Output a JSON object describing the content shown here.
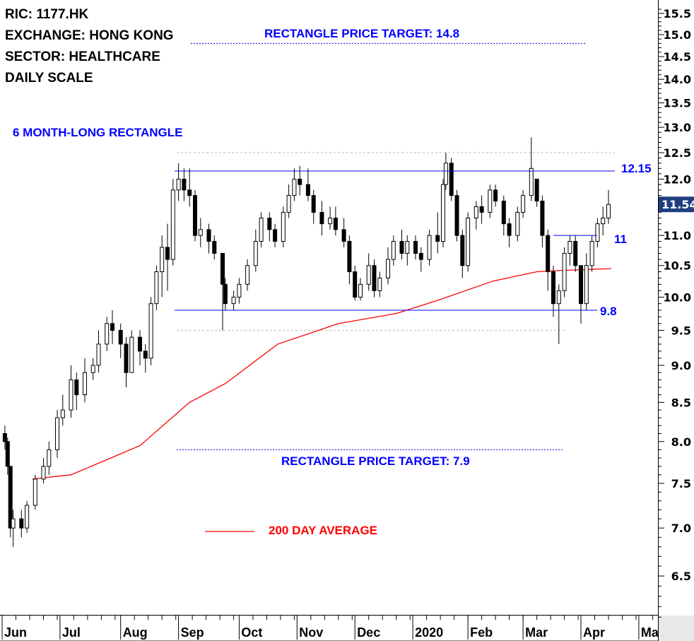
{
  "chart_data": {
    "type": "candlestick",
    "title": "",
    "info": [
      "RIC: 1177.HK",
      "EXCHANGE: HONG KONG",
      "SECTOR: HEALTHCARE",
      "DAILY SCALE"
    ],
    "y_scale": "log",
    "ylim": [
      6.0,
      15.7
    ],
    "y_ticks": [
      "15.5",
      "15.0",
      "14.5",
      "14.0",
      "13.5",
      "13.0",
      "12.5",
      "12.0",
      "11.0",
      "10.5",
      "10.0",
      "9.5",
      "9.0",
      "8.5",
      "8.0",
      "7.5",
      "7.0",
      "6.5"
    ],
    "x_ticks": [
      {
        "label": "Jun",
        "day": 0
      },
      {
        "label": "Jul",
        "day": 21
      },
      {
        "label": "Aug",
        "day": 43
      },
      {
        "label": "Sep",
        "day": 64
      },
      {
        "label": "Oct",
        "day": 86
      },
      {
        "label": "Nov",
        "day": 107
      },
      {
        "label": "Dec",
        "day": 128
      },
      {
        "label": "2020",
        "day": 149
      },
      {
        "label": "Feb",
        "day": 169
      },
      {
        "label": "Mar",
        "day": 189
      },
      {
        "label": "Apr",
        "day": 210
      },
      {
        "label": "Ma",
        "day": 231
      }
    ],
    "last_price": "11.54",
    "candle_fields": [
      "day",
      "open",
      "high",
      "low",
      "close"
    ],
    "candles": [
      [
        1,
        8.1,
        8.2,
        7.9,
        8.0
      ],
      [
        2,
        8.0,
        8.05,
        7.6,
        7.7
      ],
      [
        3,
        7.7,
        7.7,
        6.9,
        7.0
      ],
      [
        4,
        7.0,
        7.2,
        6.8,
        7.1
      ],
      [
        7,
        7.1,
        7.2,
        6.9,
        7.0
      ],
      [
        9,
        7.0,
        7.3,
        6.95,
        7.25
      ],
      [
        12,
        7.25,
        7.6,
        7.2,
        7.55
      ],
      [
        15,
        7.55,
        7.8,
        7.5,
        7.7
      ],
      [
        17,
        7.7,
        8.0,
        7.6,
        7.9
      ],
      [
        20,
        7.9,
        8.4,
        7.8,
        8.3
      ],
      [
        22,
        8.3,
        8.6,
        8.2,
        8.4
      ],
      [
        25,
        8.4,
        9.0,
        8.3,
        8.8
      ],
      [
        27,
        8.8,
        8.9,
        8.4,
        8.6
      ],
      [
        30,
        8.6,
        9.1,
        8.5,
        8.9
      ],
      [
        33,
        8.9,
        9.1,
        8.8,
        9.0
      ],
      [
        35,
        9.0,
        9.5,
        8.9,
        9.3
      ],
      [
        38,
        9.3,
        9.7,
        9.2,
        9.6
      ],
      [
        40,
        9.6,
        9.8,
        9.3,
        9.5
      ],
      [
        43,
        9.5,
        9.6,
        9.1,
        9.3
      ],
      [
        45,
        9.3,
        9.4,
        8.7,
        8.9
      ],
      [
        47,
        8.9,
        9.5,
        8.9,
        9.4
      ],
      [
        50,
        9.4,
        9.5,
        9.0,
        9.2
      ],
      [
        52,
        9.2,
        9.3,
        8.9,
        9.1
      ],
      [
        54,
        9.1,
        10.0,
        9.0,
        9.9
      ],
      [
        56,
        9.9,
        10.5,
        9.8,
        10.4
      ],
      [
        58,
        10.4,
        11.0,
        10.0,
        10.8
      ],
      [
        60,
        10.8,
        11.2,
        10.1,
        10.6
      ],
      [
        62,
        10.6,
        12.0,
        10.5,
        11.8
      ],
      [
        64,
        11.8,
        12.3,
        11.6,
        12.0
      ],
      [
        66,
        12.0,
        12.2,
        11.6,
        11.8
      ],
      [
        68,
        11.8,
        12.2,
        11.5,
        11.7
      ],
      [
        70,
        11.7,
        11.8,
        10.9,
        11.0
      ],
      [
        72,
        11.0,
        11.3,
        10.8,
        11.1
      ],
      [
        75,
        11.1,
        11.2,
        10.7,
        10.9
      ],
      [
        77,
        10.9,
        11.0,
        10.6,
        10.7
      ],
      [
        80,
        10.7,
        10.7,
        9.5,
        10.2
      ],
      [
        81,
        10.2,
        10.3,
        9.8,
        9.9
      ],
      [
        84,
        9.9,
        10.1,
        9.8,
        10.0
      ],
      [
        86,
        10.0,
        10.3,
        9.9,
        10.2
      ],
      [
        89,
        10.2,
        10.6,
        10.1,
        10.5
      ],
      [
        92,
        10.5,
        11.1,
        10.4,
        10.9
      ],
      [
        94,
        10.9,
        11.4,
        10.8,
        11.3
      ],
      [
        97,
        11.3,
        11.4,
        10.9,
        11.1
      ],
      [
        99,
        11.1,
        11.2,
        10.8,
        10.9
      ],
      [
        102,
        10.9,
        11.5,
        10.8,
        11.4
      ],
      [
        104,
        11.4,
        11.9,
        11.3,
        11.7
      ],
      [
        106,
        11.7,
        12.2,
        11.6,
        12.0
      ],
      [
        108,
        12.0,
        12.25,
        11.7,
        11.9
      ],
      [
        111,
        11.9,
        12.2,
        11.6,
        11.7
      ],
      [
        113,
        11.7,
        11.8,
        11.2,
        11.4
      ],
      [
        116,
        11.4,
        11.6,
        11.0,
        11.2
      ],
      [
        119,
        11.2,
        11.5,
        11.1,
        11.3
      ],
      [
        121,
        11.3,
        11.5,
        11.0,
        11.1
      ],
      [
        124,
        11.1,
        11.3,
        10.8,
        10.9
      ],
      [
        126,
        10.9,
        11.0,
        10.2,
        10.4
      ],
      [
        128,
        10.4,
        10.5,
        9.95,
        10.0
      ],
      [
        130,
        10.0,
        10.3,
        9.95,
        10.2
      ],
      [
        133,
        10.2,
        10.7,
        10.1,
        10.5
      ],
      [
        135,
        10.5,
        10.6,
        10.0,
        10.1
      ],
      [
        137,
        10.1,
        10.4,
        10.0,
        10.3
      ],
      [
        140,
        10.3,
        10.8,
        10.2,
        10.6
      ],
      [
        142,
        10.6,
        11.0,
        10.5,
        10.9
      ],
      [
        145,
        10.9,
        11.1,
        10.6,
        10.7
      ],
      [
        147,
        10.7,
        11.0,
        10.5,
        10.9
      ],
      [
        150,
        10.9,
        11.0,
        10.6,
        10.7
      ],
      [
        152,
        10.7,
        10.8,
        10.4,
        10.6
      ],
      [
        155,
        10.6,
        11.1,
        10.5,
        11.0
      ],
      [
        158,
        11.0,
        11.4,
        10.7,
        10.9
      ],
      [
        160,
        10.9,
        12.0,
        10.8,
        11.9
      ],
      [
        161,
        11.9,
        12.5,
        11.8,
        12.3
      ],
      [
        163,
        12.3,
        12.4,
        11.6,
        11.7
      ],
      [
        165,
        11.7,
        11.8,
        10.9,
        11.0
      ],
      [
        167,
        11.0,
        11.1,
        10.3,
        10.5
      ],
      [
        169,
        10.5,
        11.4,
        10.4,
        11.3
      ],
      [
        172,
        11.3,
        11.6,
        11.1,
        11.5
      ],
      [
        174,
        11.5,
        11.7,
        11.2,
        11.4
      ],
      [
        177,
        11.4,
        11.9,
        11.3,
        11.8
      ],
      [
        179,
        11.8,
        11.9,
        11.5,
        11.6
      ],
      [
        182,
        11.6,
        11.7,
        11.0,
        11.2
      ],
      [
        184,
        11.2,
        11.3,
        10.8,
        11.0
      ],
      [
        187,
        11.0,
        11.5,
        10.9,
        11.4
      ],
      [
        189,
        11.4,
        11.8,
        11.3,
        11.7
      ],
      [
        192,
        11.7,
        12.8,
        11.6,
        12.2
      ],
      [
        194,
        12.0,
        12.0,
        11.5,
        11.6
      ],
      [
        196,
        11.6,
        11.7,
        10.8,
        11.0
      ],
      [
        198,
        11.0,
        11.1,
        10.1,
        10.4
      ],
      [
        200,
        10.4,
        10.5,
        9.7,
        9.9
      ],
      [
        202,
        9.9,
        10.2,
        9.3,
        10.1
      ],
      [
        204,
        10.1,
        10.8,
        10.0,
        10.7
      ],
      [
        206,
        10.7,
        11.0,
        10.5,
        10.9
      ],
      [
        208,
        10.9,
        11.0,
        10.4,
        10.5
      ],
      [
        210,
        10.5,
        10.5,
        9.6,
        9.9
      ],
      [
        212,
        9.9,
        10.7,
        9.8,
        10.5
      ],
      [
        214,
        10.5,
        11.0,
        10.4,
        10.9
      ],
      [
        216,
        10.9,
        11.3,
        10.8,
        11.2
      ],
      [
        218,
        11.2,
        11.5,
        11.0,
        11.3
      ],
      [
        220,
        11.3,
        11.8,
        11.2,
        11.54
      ]
    ],
    "moving_average": {
      "name": "200 DAY AVERAGE",
      "color": "#ff0000",
      "points": [
        [
          11,
          7.55
        ],
        [
          25,
          7.6
        ],
        [
          50,
          7.95
        ],
        [
          68,
          8.5
        ],
        [
          81,
          8.75
        ],
        [
          100,
          9.3
        ],
        [
          122,
          9.6
        ],
        [
          143,
          9.75
        ],
        [
          158,
          9.95
        ],
        [
          178,
          10.25
        ],
        [
          194,
          10.4
        ],
        [
          202,
          10.42
        ],
        [
          221,
          10.45
        ]
      ]
    },
    "annotations": {
      "rectangle_label": "6 MONTH-LONG RECTANGLE",
      "upper_target_label": "RECTANGLE  PRICE TARGET: 14.8",
      "lower_target_label": "RECTANGLE  PRICE TARGET: 7.9",
      "resistance_label": "12.15",
      "support_label": "9.8",
      "neckline_label": "11",
      "legend_label": "200 DAY AVERAGE",
      "resistance": 12.15,
      "support": 9.8,
      "neckline": 11.0,
      "upper_target": 14.8,
      "lower_target": 7.9,
      "upper_extreme": 12.5,
      "lower_extreme": 9.5,
      "line_color": "#0000ff"
    }
  }
}
